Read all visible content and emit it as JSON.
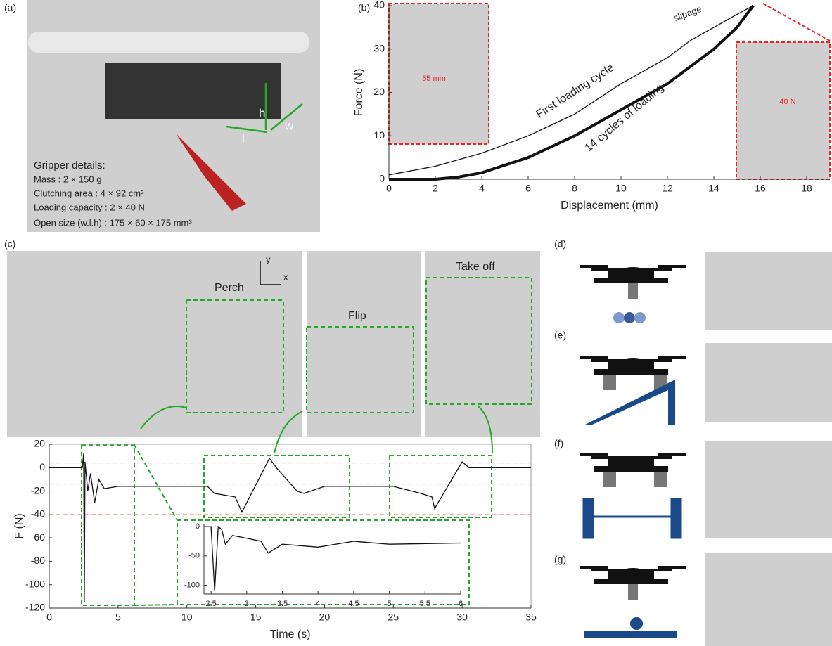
{
  "panel_labels": [
    "(a)",
    "(b)",
    "(c)",
    "(d)",
    "(e)",
    "(f)",
    "(g)"
  ],
  "gripper": {
    "title": "Gripper details:",
    "lines": [
      "Mass : 2 × 150 g",
      "Clutching area : 4 × 92 cm²",
      "Loading capacity : 2 × 40 N",
      "Open size (w.l.h) : 175 × 60 × 175 mm³"
    ],
    "dims": [
      "h",
      "w",
      "l"
    ]
  },
  "flight": {
    "stages": [
      "Perch",
      "Flip",
      "Take off"
    ],
    "axes": [
      "y",
      "x"
    ]
  },
  "chart_data": [
    {
      "type": "line",
      "xlabel": "Displacement (mm)",
      "ylabel": "Force (N)",
      "xlim": [
        0,
        19
      ],
      "xticks": [
        0,
        2,
        4,
        6,
        8,
        10,
        12,
        14,
        16,
        18
      ],
      "ylim": [
        0,
        40
      ],
      "yticks": [
        0,
        10,
        20,
        30,
        40
      ],
      "annotations": [
        "slipage",
        "55 mm",
        "40 N"
      ],
      "series": [
        {
          "name": "First loading cycle",
          "color": "#111111",
          "x": [
            0,
            2,
            4,
            6,
            8,
            10,
            12,
            13,
            14,
            15,
            15.7
          ],
          "values": [
            1,
            3,
            6,
            10,
            15,
            22,
            28,
            32,
            35,
            38,
            40
          ]
        },
        {
          "name": "14 cycles of loading",
          "color": "#111111",
          "x": [
            0,
            2,
            3,
            4,
            6,
            8,
            10,
            12,
            14,
            15,
            15.7
          ],
          "values": [
            0,
            0,
            0.5,
            1.5,
            5,
            10,
            16,
            22,
            30,
            35,
            40
          ]
        }
      ]
    },
    {
      "type": "line",
      "xlabel": "Time (s)",
      "ylabel": "F (N)",
      "xlim": [
        0,
        35
      ],
      "xticks": [
        0,
        5,
        10,
        15,
        20,
        25,
        30,
        35
      ],
      "ylim": [
        -120,
        20
      ],
      "yticks": [
        -120,
        -100,
        -80,
        -60,
        -40,
        -20,
        0,
        20
      ],
      "hlines": [
        4,
        -14,
        -40
      ],
      "hline_color": "#f08080",
      "series": [
        {
          "color": "#111111",
          "x": [
            0,
            2.4,
            2.5,
            2.55,
            2.6,
            2.8,
            3,
            3.3,
            3.6,
            4,
            5,
            6,
            10,
            11.5,
            12,
            13.5,
            14,
            16,
            16.5,
            18,
            18.5,
            20,
            25,
            27,
            27.8,
            28,
            30,
            30.5,
            35
          ],
          "values": [
            0,
            0,
            12,
            -115,
            5,
            -20,
            -5,
            -30,
            -10,
            -18,
            -16,
            -16,
            -16,
            -16,
            -22,
            -25,
            -38,
            8,
            0,
            -20,
            -22,
            -16,
            -16,
            -22,
            -25,
            -35,
            5,
            0,
            0
          ]
        }
      ]
    },
    {
      "type": "line",
      "xlim": [
        2.4,
        6
      ],
      "xticks": [
        2.5,
        3,
        3.5,
        4,
        4.5,
        5,
        5.5,
        6
      ],
      "ylim": [
        -115,
        5
      ],
      "yticks": [
        -100,
        -50,
        0
      ],
      "series": [
        {
          "color": "#111111",
          "x": [
            2.4,
            2.5,
            2.55,
            2.6,
            2.65,
            2.7,
            2.8,
            3,
            3.2,
            3.3,
            3.5,
            4,
            4.5,
            5,
            6
          ],
          "values": [
            0,
            0,
            -110,
            0,
            -5,
            -30,
            -15,
            -20,
            -25,
            -45,
            -30,
            -35,
            -25,
            -30,
            -28
          ]
        }
      ]
    }
  ]
}
